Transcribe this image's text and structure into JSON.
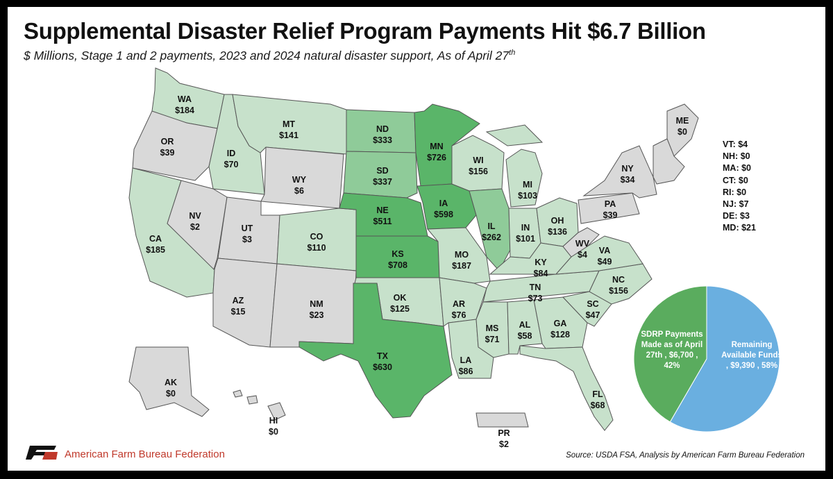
{
  "title": "Supplemental Disaster Relief Program Payments Hit $6.7 Billion",
  "subtitle_main": "$ Millions, Stage 1 and 2 payments, 2023 and 2024 natural disaster support, As of April 27",
  "subtitle_sup": "th",
  "colors": {
    "none": "#d9d9d9",
    "low": "#c7e1cb",
    "mid": "#8fcb99",
    "high": "#5ab569",
    "border": "#555555",
    "pie_paid": "#5aac5e",
    "pie_remaining": "#6aafe0"
  },
  "states": [
    {
      "abbr": "WA",
      "value": "$184"
    },
    {
      "abbr": "OR",
      "value": "$39"
    },
    {
      "abbr": "CA",
      "value": "$185"
    },
    {
      "abbr": "ID",
      "value": "$70"
    },
    {
      "abbr": "NV",
      "value": "$2"
    },
    {
      "abbr": "MT",
      "value": "$141"
    },
    {
      "abbr": "WY",
      "value": "$6"
    },
    {
      "abbr": "UT",
      "value": "$3"
    },
    {
      "abbr": "AZ",
      "value": "$15"
    },
    {
      "abbr": "CO",
      "value": "$110"
    },
    {
      "abbr": "NM",
      "value": "$23"
    },
    {
      "abbr": "ND",
      "value": "$333"
    },
    {
      "abbr": "SD",
      "value": "$337"
    },
    {
      "abbr": "NE",
      "value": "$511"
    },
    {
      "abbr": "KS",
      "value": "$708"
    },
    {
      "abbr": "OK",
      "value": "$125"
    },
    {
      "abbr": "TX",
      "value": "$630"
    },
    {
      "abbr": "MN",
      "value": "$726"
    },
    {
      "abbr": "IA",
      "value": "$598"
    },
    {
      "abbr": "MO",
      "value": "$187"
    },
    {
      "abbr": "AR",
      "value": "$76"
    },
    {
      "abbr": "LA",
      "value": "$86"
    },
    {
      "abbr": "WI",
      "value": "$156"
    },
    {
      "abbr": "IL",
      "value": "$262"
    },
    {
      "abbr": "MI",
      "value": "$103"
    },
    {
      "abbr": "IN",
      "value": "$101"
    },
    {
      "abbr": "OH",
      "value": "$136"
    },
    {
      "abbr": "KY",
      "value": "$84"
    },
    {
      "abbr": "TN",
      "value": "$73"
    },
    {
      "abbr": "MS",
      "value": "$71"
    },
    {
      "abbr": "AL",
      "value": "$58"
    },
    {
      "abbr": "GA",
      "value": "$128"
    },
    {
      "abbr": "FL",
      "value": "$68"
    },
    {
      "abbr": "SC",
      "value": "$47"
    },
    {
      "abbr": "NC",
      "value": "$156"
    },
    {
      "abbr": "VA",
      "value": "$49"
    },
    {
      "abbr": "WV",
      "value": "$4"
    },
    {
      "abbr": "PA",
      "value": "$39"
    },
    {
      "abbr": "NY",
      "value": "$34"
    },
    {
      "abbr": "ME",
      "value": "$0"
    },
    {
      "abbr": "AK",
      "value": "$0"
    },
    {
      "abbr": "HI",
      "value": "$0"
    },
    {
      "abbr": "PR",
      "value": "$2"
    }
  ],
  "small_states": [
    "VT: $4",
    "NH: $0",
    "MA: $0",
    "CT: $0",
    "RI: $0",
    "NJ: $7",
    "DE: $3",
    "MD: $21"
  ],
  "pie": {
    "paid_lines": [
      "SDRP Payments",
      "Made as of April",
      "27th , $6,700 ,",
      "42%"
    ],
    "remaining_lines": [
      "Remaining",
      "Available Funds",
      ", $9,390 , 58%"
    ],
    "paid_value": 6700,
    "remaining_value": 9390,
    "paid_percent": 42,
    "remaining_percent": 58
  },
  "footer": {
    "org": "American Farm Bureau Federation",
    "source": "Source: USDA FSA, Analysis by American Farm Bureau Federation"
  }
}
